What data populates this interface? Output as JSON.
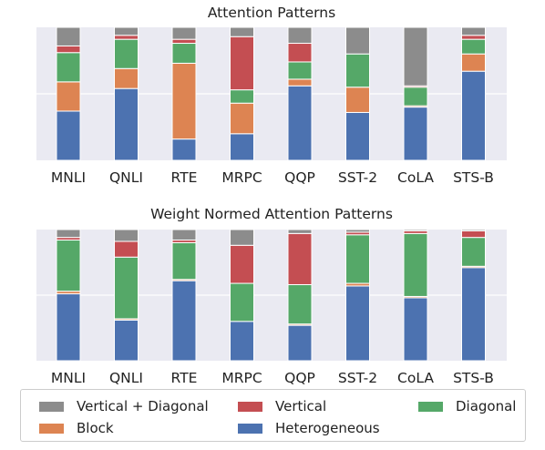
{
  "chart_data": [
    {
      "type": "bar",
      "stacked": true,
      "title": "Attention Patterns",
      "categories": [
        "MNLI",
        "QNLI",
        "RTE",
        "MRPC",
        "QQP",
        "SST-2",
        "CoLA",
        "STS-B"
      ],
      "ylim": [
        0,
        1
      ],
      "grid": true,
      "series": [
        {
          "name": "Heterogeneous",
          "color": "#4c72b0",
          "values": [
            0.37,
            0.54,
            0.16,
            0.2,
            0.56,
            0.36,
            0.4,
            0.67
          ]
        },
        {
          "name": "Block",
          "color": "#dd8452",
          "values": [
            0.22,
            0.15,
            0.57,
            0.23,
            0.05,
            0.19,
            0.01,
            0.13
          ]
        },
        {
          "name": "Diagonal",
          "color": "#55a868",
          "values": [
            0.22,
            0.22,
            0.15,
            0.1,
            0.13,
            0.25,
            0.14,
            0.11
          ]
        },
        {
          "name": "Vertical",
          "color": "#c44e52",
          "values": [
            0.05,
            0.03,
            0.03,
            0.4,
            0.14,
            0.0,
            0.01,
            0.03
          ]
        },
        {
          "name": "Vertical + Diagonal",
          "color": "#8c8c8c",
          "values": [
            0.14,
            0.06,
            0.09,
            0.07,
            0.12,
            0.2,
            0.44,
            0.06
          ]
        }
      ]
    },
    {
      "type": "bar",
      "stacked": true,
      "title": "Weight Normed Attention Patterns",
      "categories": [
        "MNLI",
        "QNLI",
        "RTE",
        "MRPC",
        "QQP",
        "SST-2",
        "CoLA",
        "STS-B"
      ],
      "ylim": [
        0,
        1
      ],
      "grid": true,
      "series": [
        {
          "name": "Heterogeneous",
          "color": "#4c72b0",
          "values": [
            0.51,
            0.31,
            0.61,
            0.3,
            0.27,
            0.57,
            0.48,
            0.71
          ]
        },
        {
          "name": "Block",
          "color": "#dd8452",
          "values": [
            0.02,
            0.01,
            0.01,
            0.0,
            0.01,
            0.02,
            0.01,
            0.01
          ]
        },
        {
          "name": "Diagonal",
          "color": "#55a868",
          "values": [
            0.39,
            0.47,
            0.28,
            0.29,
            0.3,
            0.37,
            0.48,
            0.22
          ]
        },
        {
          "name": "Vertical",
          "color": "#c44e52",
          "values": [
            0.02,
            0.12,
            0.02,
            0.29,
            0.39,
            0.02,
            0.02,
            0.05
          ]
        },
        {
          "name": "Vertical + Diagonal",
          "color": "#8c8c8c",
          "values": [
            0.06,
            0.09,
            0.08,
            0.12,
            0.03,
            0.02,
            0.01,
            0.01
          ]
        }
      ]
    }
  ],
  "legend": {
    "items": [
      {
        "label": "Vertical + Diagonal",
        "color": "#8c8c8c"
      },
      {
        "label": "Vertical",
        "color": "#c44e52"
      },
      {
        "label": "Diagonal",
        "color": "#55a868"
      },
      {
        "label": "Block",
        "color": "#dd8452"
      },
      {
        "label": "Heterogeneous",
        "color": "#4c72b0"
      }
    ]
  }
}
